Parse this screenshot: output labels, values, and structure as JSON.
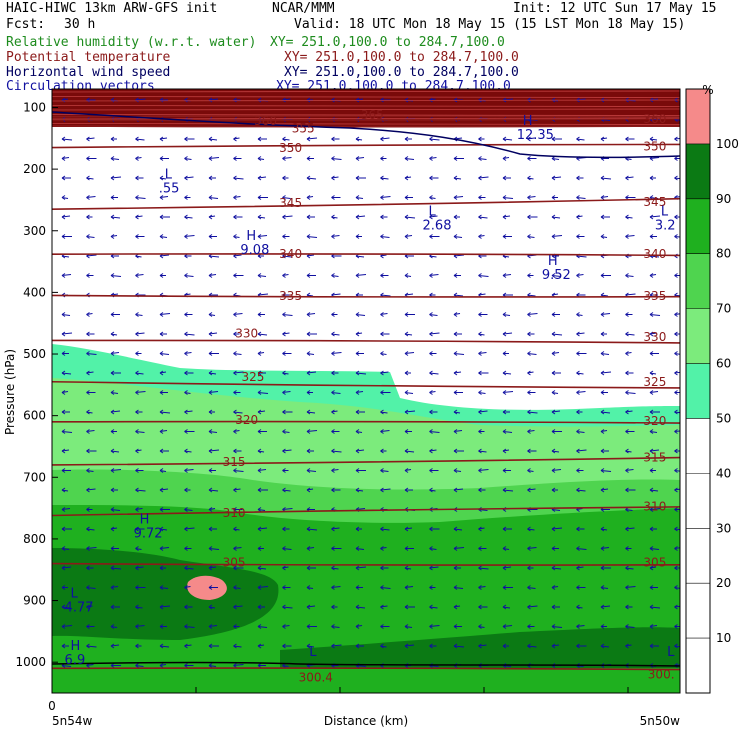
{
  "header": {
    "model": "HAIC-HIWC 13km ARW-GFS init",
    "center": "NCAR/MMM",
    "init": "Init: 12 UTC Sun 17 May 15",
    "fcst_label": "Fcst:",
    "fcst_value": "30 h",
    "valid": "Valid: 18 UTC Mon 18 May 15 (15 LST Mon 18 May 15)"
  },
  "fields": [
    {
      "name": "Relative humidity (w.r.t. water)",
      "xy": "XY= 251.0,100.0 to 284.7,100.0",
      "color": "#1e8c1e"
    },
    {
      "name": "Potential temperature",
      "xy": "XY= 251.0,100.0 to 284.7,100.0",
      "color": "#8b1a1a"
    },
    {
      "name": "Horizontal wind speed",
      "xy": "XY= 251.0,100.0 to 284.7,100.0",
      "color": "#000060"
    },
    {
      "name": "Circulation vectors",
      "xy": "XY= 251.0,100.0 to 284.7,100.0",
      "color": "#1010a0"
    }
  ],
  "chart_data": {
    "type": "heatmap",
    "title": "",
    "xlabel": "Distance (km)",
    "ylabel": "Pressure (hPa)",
    "x_start_label": "5n54w",
    "x_end_label": "5n50w",
    "x_zero_label": "0",
    "ylim": [
      1050,
      70
    ],
    "y_ticks": [
      100,
      200,
      300,
      400,
      500,
      600,
      700,
      800,
      900,
      1000
    ],
    "colorbar": {
      "unit": "%",
      "ticks": [
        10,
        20,
        30,
        40,
        50,
        60,
        70,
        80,
        90,
        100
      ],
      "bins": [
        {
          "from": 0,
          "to": 50,
          "color": "#ffffff"
        },
        {
          "from": 50,
          "to": 60,
          "color": "#52f2a8"
        },
        {
          "from": 60,
          "to": 70,
          "color": "#7ceb7c"
        },
        {
          "from": 70,
          "to": 80,
          "color": "#4fd44f"
        },
        {
          "from": 80,
          "to": 90,
          "color": "#1fb01f"
        },
        {
          "from": 90,
          "to": 100,
          "color": "#0b7a14"
        },
        {
          "from": 100,
          "to": 110,
          "color": "#f58a8a"
        }
      ]
    },
    "theta_contours": [
      {
        "value": "300",
        "p_left": 1010,
        "p_right": 1012
      },
      {
        "value": "305",
        "p_left": 840,
        "p_right": 842
      },
      {
        "value": "310",
        "p_left": 762,
        "p_right": 748
      },
      {
        "value": "315",
        "p_left": 680,
        "p_right": 668
      },
      {
        "value": "320",
        "p_left": 610,
        "p_right": 612
      },
      {
        "value": "325",
        "p_left": 545,
        "p_right": 555
      },
      {
        "value": "330",
        "p_left": 478,
        "p_right": 482
      },
      {
        "value": "335",
        "p_left": 405,
        "p_right": 407
      },
      {
        "value": "340",
        "p_left": 338,
        "p_right": 340
      },
      {
        "value": "345",
        "p_left": 265,
        "p_right": 248
      },
      {
        "value": "350",
        "p_left": 165,
        "p_right": 160
      },
      {
        "value": "355",
        "p_left": 130,
        "p_right": 130
      },
      {
        "value": "365",
        "p_left": 115,
        "p_right": 115
      },
      {
        "value": "360",
        "p_left": 120,
        "p_right": 118
      }
    ],
    "contour_labels": [
      {
        "text": "355",
        "x_frac": 0.4,
        "p": 134
      },
      {
        "text": "365",
        "x_frac": 0.51,
        "p": 112
      },
      {
        "text": "360",
        "x_frac": 0.34,
        "p": 122
      },
      {
        "text": "360",
        "x_frac": 0.96,
        "p": 119
      },
      {
        "text": "350",
        "x_frac": 0.38,
        "p": 166
      },
      {
        "text": "350",
        "x_frac": 0.96,
        "p": 163
      },
      {
        "text": "345",
        "x_frac": 0.38,
        "p": 255
      },
      {
        "text": "345",
        "x_frac": 0.96,
        "p": 253
      },
      {
        "text": "340",
        "x_frac": 0.38,
        "p": 338
      },
      {
        "text": "340",
        "x_frac": 0.96,
        "p": 338
      },
      {
        "text": "335",
        "x_frac": 0.38,
        "p": 406
      },
      {
        "text": "335",
        "x_frac": 0.96,
        "p": 406
      },
      {
        "text": "330",
        "x_frac": 0.31,
        "p": 467
      },
      {
        "text": "330",
        "x_frac": 0.96,
        "p": 472
      },
      {
        "text": "325",
        "x_frac": 0.32,
        "p": 537
      },
      {
        "text": "325",
        "x_frac": 0.96,
        "p": 545
      },
      {
        "text": "320",
        "x_frac": 0.31,
        "p": 607
      },
      {
        "text": "320",
        "x_frac": 0.96,
        "p": 609
      },
      {
        "text": "315",
        "x_frac": 0.29,
        "p": 675
      },
      {
        "text": "315",
        "x_frac": 0.96,
        "p": 668
      },
      {
        "text": "310",
        "x_frac": 0.29,
        "p": 758
      },
      {
        "text": "310",
        "x_frac": 0.96,
        "p": 747
      },
      {
        "text": "305",
        "x_frac": 0.29,
        "p": 838
      },
      {
        "text": "305",
        "x_frac": 0.96,
        "p": 838
      },
      {
        "text": "300.4",
        "x_frac": 0.42,
        "p": 1025
      },
      {
        "text": "300.",
        "x_frac": 0.97,
        "p": 1020
      }
    ],
    "extrema": [
      {
        "type": "L",
        "value": ".55",
        "x_frac": 0.17,
        "p": 225
      },
      {
        "type": "L",
        "value": "2.68",
        "x_frac": 0.59,
        "p": 285
      },
      {
        "type": "L",
        "value": "3.2",
        "x_frac": 0.96,
        "p": 285
      },
      {
        "type": "H",
        "value": "9.08",
        "x_frac": 0.3,
        "p": 325
      },
      {
        "type": "H",
        "value": "9.52",
        "x_frac": 0.78,
        "p": 365
      },
      {
        "type": "H",
        "value": "9.72",
        "x_frac": 0.13,
        "p": 785
      },
      {
        "type": "L",
        "value": "4.77",
        "x_frac": 0.02,
        "p": 905
      },
      {
        "type": "H",
        "value": "6.9",
        "x_frac": 0.02,
        "p": 990
      },
      {
        "type": "H",
        "value": "12.35",
        "x_frac": 0.74,
        "p": 138
      },
      {
        "type": "L",
        "value": "",
        "x_frac": 0.4,
        "p": 1000
      },
      {
        "type": "L",
        "value": "",
        "x_frac": 0.97,
        "p": 1000
      }
    ],
    "wind_note": "Circulation vectors point westward (leftward) throughout most of the section"
  }
}
